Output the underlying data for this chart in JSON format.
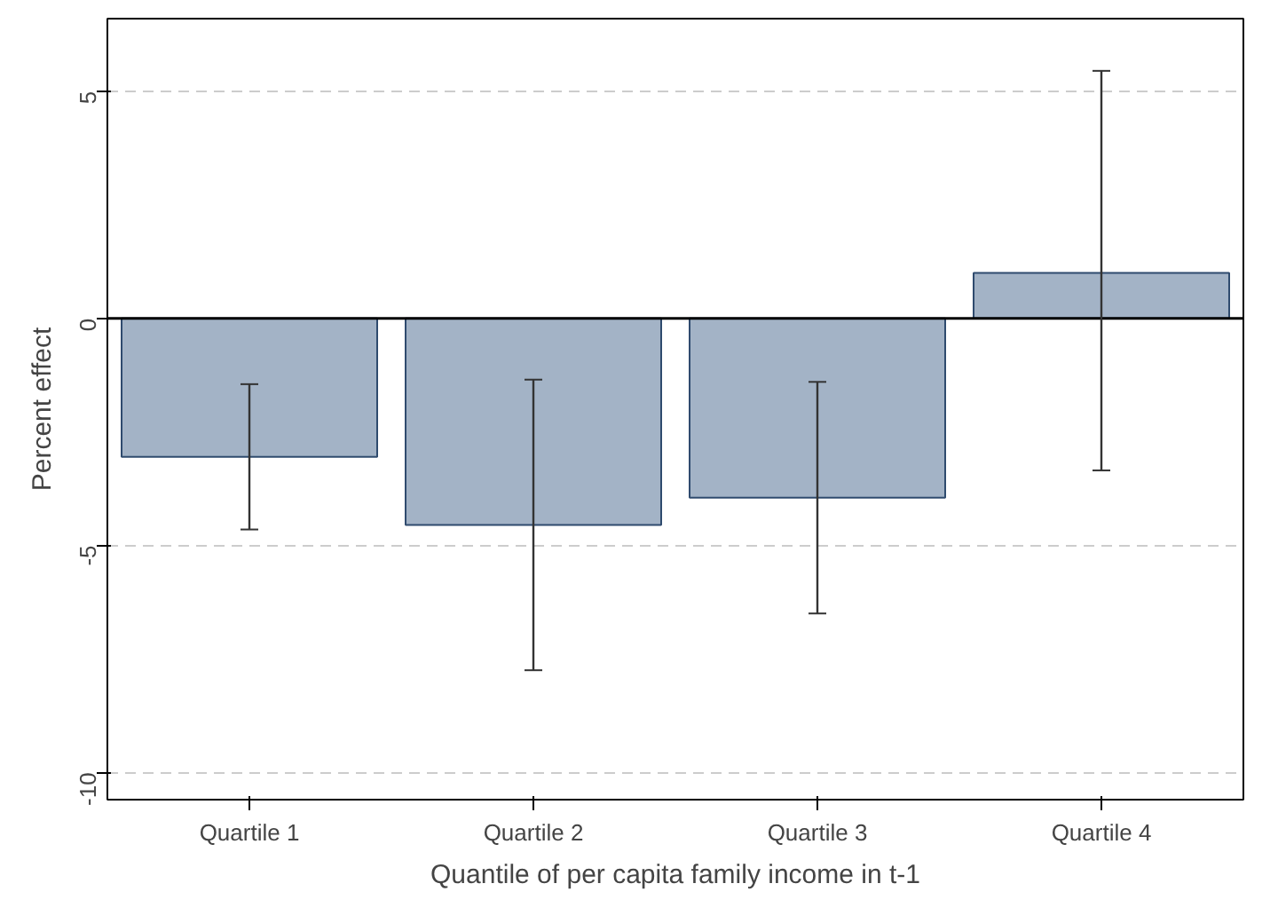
{
  "chart_data": {
    "type": "bar",
    "xlabel": "Quantile of per capita family income in t-1",
    "ylabel": "Percent effect",
    "categories": [
      "Quartile 1",
      "Quartile 2",
      "Quartile 3",
      "Quartile 4"
    ],
    "values": [
      -3.05,
      -4.55,
      -3.95,
      1.0
    ],
    "errors": [
      [
        -4.65,
        -1.45
      ],
      [
        -7.75,
        -1.35
      ],
      [
        -6.5,
        -1.4
      ],
      [
        -3.35,
        5.45
      ]
    ],
    "color": "#a3b3c6",
    "ylim": [
      -10.6,
      6.6
    ],
    "yticks": [
      -10,
      -5,
      0,
      5
    ],
    "grid": "y",
    "line_style": "dashed",
    "ref_lines": [
      {
        "axis": "y",
        "value": 0,
        "color": "#000000"
      }
    ]
  }
}
